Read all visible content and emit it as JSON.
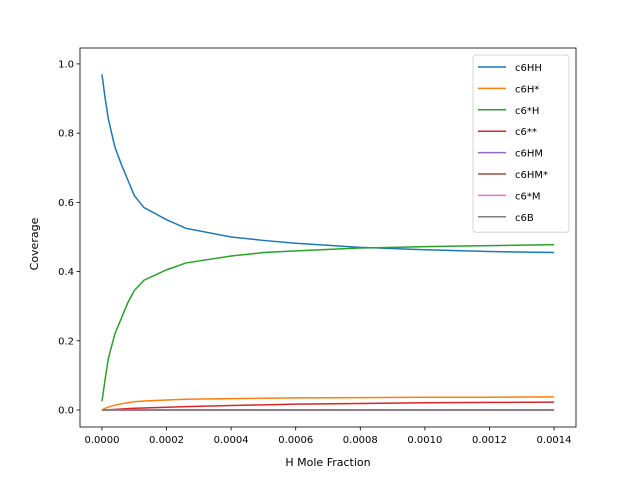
{
  "chart_data": {
    "type": "line",
    "x_label": "H Mole Fraction",
    "y_label": "Coverage",
    "x": [
      0,
      1e-05,
      2e-05,
      4e-05,
      6e-05,
      8e-05,
      0.0001,
      0.00013,
      0.0002,
      0.00026,
      0.0004,
      0.0005,
      0.0006,
      0.0008,
      0.001,
      0.0012,
      0.0014
    ],
    "series": [
      {
        "name": "c6HH",
        "color": "#1f77b4",
        "values": [
          0.97,
          0.9,
          0.84,
          0.76,
          0.71,
          0.665,
          0.62,
          0.585,
          0.55,
          0.525,
          0.5,
          0.49,
          0.482,
          0.47,
          0.463,
          0.458,
          0.455
        ]
      },
      {
        "name": "c6H*",
        "color": "#ff7f0e",
        "values": [
          0,
          0.005,
          0.009,
          0.014,
          0.018,
          0.021,
          0.024,
          0.026,
          0.029,
          0.031,
          0.033,
          0.034,
          0.035,
          0.036,
          0.037,
          0.037,
          0.038
        ]
      },
      {
        "name": "c6*H",
        "color": "#2ca02c",
        "values": [
          0.025,
          0.09,
          0.15,
          0.22,
          0.265,
          0.31,
          0.345,
          0.375,
          0.405,
          0.425,
          0.445,
          0.455,
          0.46,
          0.468,
          0.472,
          0.475,
          0.478
        ]
      },
      {
        "name": "c6**",
        "color": "#d62728",
        "values": [
          0,
          0,
          0.001,
          0.002,
          0.003,
          0.004,
          0.005,
          0.006,
          0.008,
          0.01,
          0.013,
          0.015,
          0.017,
          0.019,
          0.021,
          0.022,
          0.023
        ]
      },
      {
        "name": "c6HM",
        "color": "#9467bd",
        "values": [
          0,
          0,
          0,
          0,
          0,
          0,
          0,
          0,
          0,
          0,
          0,
          0,
          0,
          0,
          0,
          0,
          0
        ]
      },
      {
        "name": "c6HM*",
        "color": "#8c564b",
        "values": [
          0,
          0,
          0,
          0,
          0,
          0,
          0,
          0,
          0,
          0,
          0,
          0,
          0,
          0,
          0,
          0,
          0
        ]
      },
      {
        "name": "c6*M",
        "color": "#e377c2",
        "values": [
          0,
          0,
          0,
          0,
          0,
          0,
          0,
          0,
          0,
          0,
          0,
          0,
          0,
          0,
          0,
          0,
          0
        ]
      },
      {
        "name": "c6B",
        "color": "#7f7f7f",
        "values": [
          0,
          0,
          0,
          0,
          0,
          0,
          0,
          0,
          0,
          0,
          0,
          0,
          0,
          0,
          0,
          0,
          0
        ]
      }
    ],
    "xlim": [
      -6.8e-05,
      0.001468
    ],
    "ylim": [
      -0.049,
      1.046
    ],
    "xticks": [
      {
        "value": 0,
        "label": "0.0000"
      },
      {
        "value": 0.0002,
        "label": "0.0002"
      },
      {
        "value": 0.0004,
        "label": "0.0004"
      },
      {
        "value": 0.0006,
        "label": "0.0006"
      },
      {
        "value": 0.0008,
        "label": "0.0008"
      },
      {
        "value": 0.001,
        "label": "0.0010"
      },
      {
        "value": 0.0012,
        "label": "0.0012"
      },
      {
        "value": 0.0014,
        "label": "0.0014"
      }
    ],
    "yticks": [
      {
        "value": 0,
        "label": "0.0"
      },
      {
        "value": 0.2,
        "label": "0.2"
      },
      {
        "value": 0.4,
        "label": "0.4"
      },
      {
        "value": 0.6,
        "label": "0.6"
      },
      {
        "value": 0.8,
        "label": "0.8"
      },
      {
        "value": 1,
        "label": "1.0"
      }
    ],
    "grid": false,
    "legend": "upper right"
  }
}
